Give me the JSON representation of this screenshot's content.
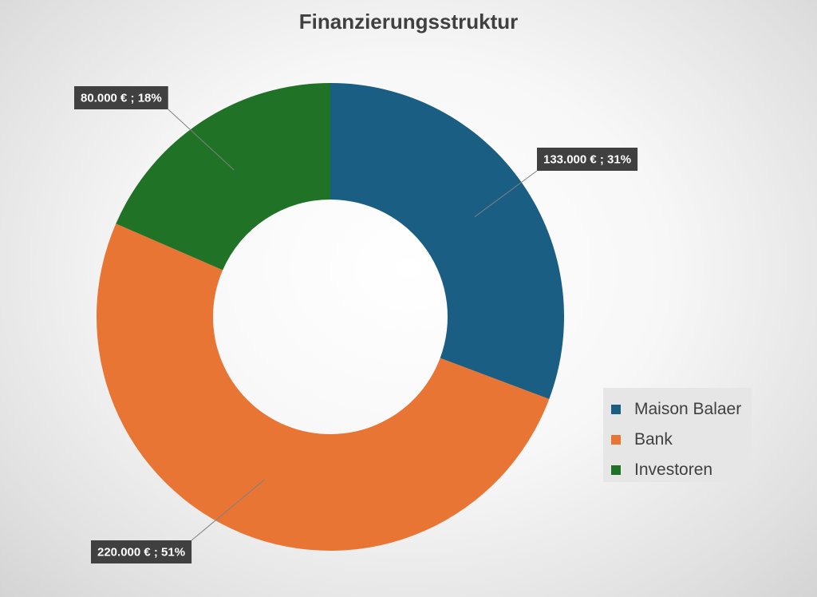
{
  "chart_data": {
    "type": "pie",
    "variant": "donut",
    "title": "Finanzierungsstruktur",
    "currency": "€",
    "slices": [
      {
        "name": "Maison Balaer",
        "value": 133000,
        "percent": 31,
        "color": "#1a5e84",
        "label": "133.000 € ; 31%"
      },
      {
        "name": "Bank",
        "value": 220000,
        "percent": 51,
        "color": "#e97535",
        "label": "220.000 € ; 51%"
      },
      {
        "name": "Investoren",
        "value": 80000,
        "percent": 18,
        "color": "#207227",
        "label": "80.000 € ; 18%"
      }
    ],
    "legend": {
      "position": "right"
    },
    "label_style": {
      "box_color": "#404040",
      "text_color": "#ffffff"
    }
  }
}
